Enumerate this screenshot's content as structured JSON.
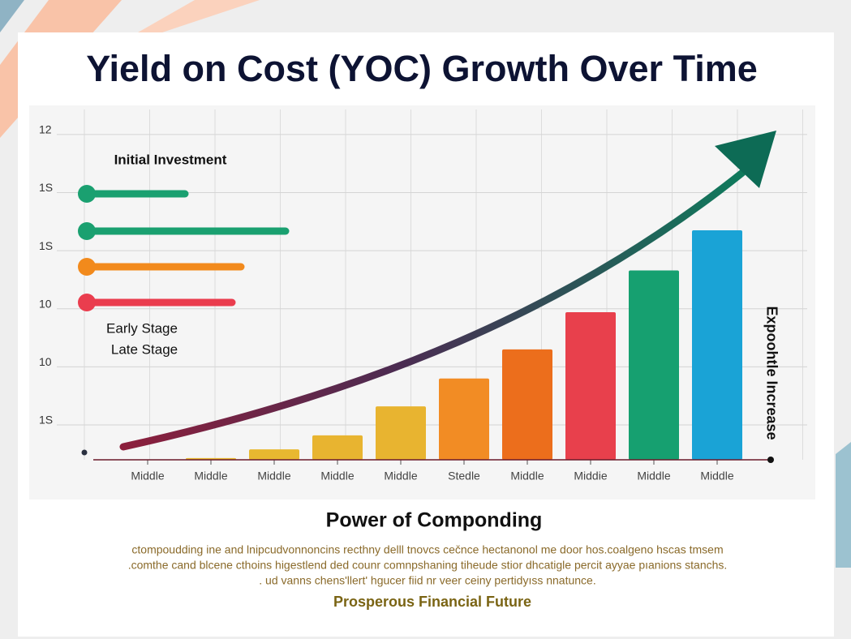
{
  "chart_data": {
    "type": "bar",
    "title": "Yield on Cost (YOC) Growth Over Time",
    "categories": [
      "Middle",
      "Middle",
      "Middle",
      "Middle",
      "Middle",
      "Stedle",
      "Middle",
      "Middie",
      "Middle",
      "Middle"
    ],
    "values": [
      0.4,
      0.43,
      0.58,
      0.82,
      1.32,
      1.8,
      2.3,
      2.94,
      3.66,
      4.35
    ],
    "colors": [
      "#e8b830",
      "#e8b830",
      "#e8b830",
      "#e8b430",
      "#e8b430",
      "#f28c24",
      "#ec6e1c",
      "#e8404c",
      "#16a070",
      "#1aa3d6"
    ],
    "ylim": [
      0.4,
      6.5
    ],
    "yticks": [
      {
        "value": 6,
        "label": "12"
      },
      {
        "value": 5,
        "label": "1S"
      },
      {
        "value": 4,
        "label": "1S"
      },
      {
        "value": 3,
        "label": "10"
      },
      {
        "value": 2,
        "label": "10"
      },
      {
        "value": 1,
        "label": "1S"
      }
    ],
    "grid": true,
    "annotations": [
      "Initial Investment",
      "Early Stage",
      "Late Stage"
    ],
    "side_label": "Expoohtle Increase"
  },
  "footer": {
    "heading": "Power of Componding",
    "lines": [
      "ctompoudding ine and lnipcudvonnoncins recthny delll tnovcs cečnce hectanonol me door hos.coalgeno hscas tmsem",
      ".comthe cand blcene cthoins higestlend ded counr comnpshaning tiheude stior dhcatigle percit ayyae pıanions stanchs.",
      ". ud vanns chens'llert' hgucer fiid nr veer ceiny pertidyıss nnatunce."
    ],
    "tagline": "Prosperous Financial Future"
  }
}
